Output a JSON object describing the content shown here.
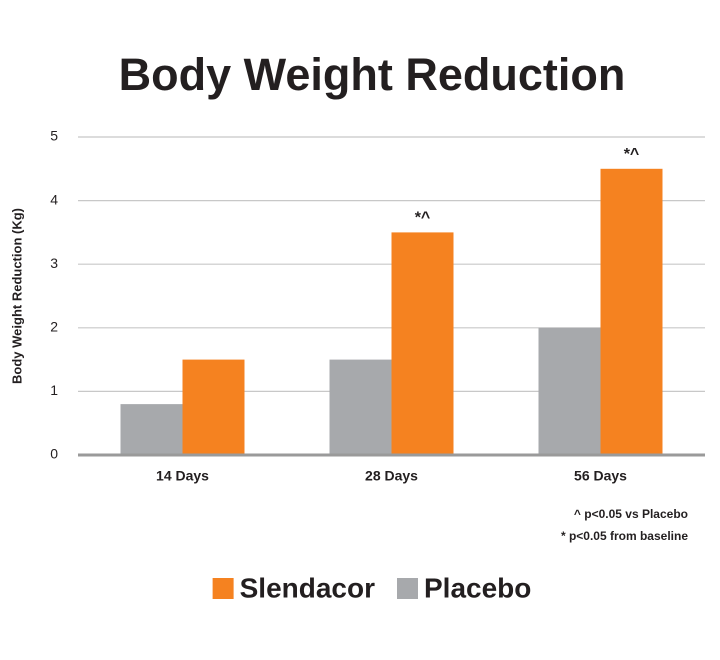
{
  "chart_data": {
    "type": "bar",
    "title": "Body Weight Reduction",
    "y_label": "Body Weight Reduction (Kg)",
    "categories": [
      "14 Days",
      "28 Days",
      "56 Days"
    ],
    "series": [
      {
        "name": "Slendacor",
        "color": "#f58220",
        "values": [
          1.5,
          3.5,
          4.5
        ]
      },
      {
        "name": "Placebo",
        "color": "#a7a9ac",
        "values": [
          0.8,
          1.5,
          2
        ]
      }
    ],
    "annotations": [
      {
        "category": "28 Days",
        "text": "*^"
      },
      {
        "category": "56 Days",
        "text": "*^"
      }
    ],
    "notes": [
      "^ p<0.05 vs Placebo",
      "* p<0.05 from baseline"
    ],
    "ylim": [
      0,
      5
    ],
    "yticks": [
      0,
      1,
      2,
      3,
      4,
      5
    ],
    "grid": true,
    "legend": "bottom"
  }
}
